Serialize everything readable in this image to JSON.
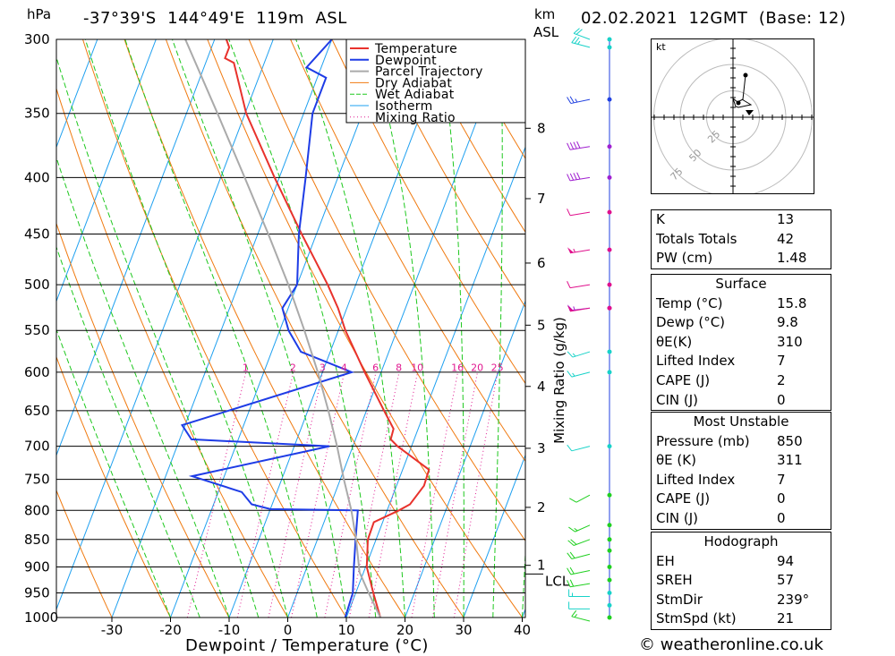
{
  "header": {
    "location": "-37°39'S  144°49'E  119m  ASL",
    "datetime": "02.02.2021  12GMT  (Base: 12)",
    "pressure_unit": "hPa",
    "height_unit_km": "km",
    "height_unit_asl": "ASL"
  },
  "footer": {
    "copyright": "© weatheronline.co.uk"
  },
  "colors": {
    "temperature": "#e8322c",
    "dewpoint": "#1e3ce6",
    "parcel": "#aaaaaa",
    "dry_adiabat": "#f07a10",
    "wet_adiabat": "#1ec81e",
    "isotherm": "#1ea0f0",
    "mixing_ratio": "#e01890",
    "wind_cyan": "#18d2c8",
    "wind_blue": "#2040e0",
    "wind_purple": "#a020d0",
    "wind_magenta": "#e0108c",
    "wind_green": "#20d020"
  },
  "chart_data": {
    "type": "line",
    "title": "",
    "xlabel": "Dewpoint / Temperature (°C)",
    "ylabel": "hPa",
    "y2label": "Mixing Ratio (g/kg)",
    "x_ticks": [
      "-30",
      "-20",
      "-10",
      "0",
      "10",
      "20",
      "30",
      "40"
    ],
    "pressure_levels": [
      300,
      350,
      400,
      450,
      500,
      550,
      600,
      650,
      700,
      750,
      800,
      850,
      900,
      950,
      1000
    ],
    "height_km": [
      {
        "label": "8",
        "p": 361
      },
      {
        "label": "7",
        "p": 418
      },
      {
        "label": "6",
        "p": 478
      },
      {
        "label": "5",
        "p": 544
      },
      {
        "label": "4",
        "p": 618
      },
      {
        "label": "3",
        "p": 703
      },
      {
        "label": "2",
        "p": 795
      },
      {
        "label": "1",
        "p": 897
      }
    ],
    "lcl_label": "LCL",
    "lcl_pressure": 910,
    "mixing_ratio_labels": [
      "1",
      "2",
      "3",
      "4",
      "6",
      "8",
      "10",
      "16",
      "20",
      "25"
    ],
    "legend": [
      "Temperature",
      "Dewpoint",
      "Parcel Trajectory",
      "Dry Adiabat",
      "Wet Adiabat",
      "Isotherm",
      "Mixing Ratio"
    ],
    "series": [
      {
        "name": "Temperature",
        "points": [
          [
            1000,
            15.8
          ],
          [
            950,
            13
          ],
          [
            900,
            10.2
          ],
          [
            850,
            8.6
          ],
          [
            820,
            8.5
          ],
          [
            800,
            12
          ],
          [
            790,
            13.5
          ],
          [
            760,
            14.7
          ],
          [
            735,
            14.5
          ],
          [
            700,
            7.6
          ],
          [
            690,
            6
          ],
          [
            675,
            5.8
          ],
          [
            650,
            3
          ],
          [
            600,
            -2.8
          ],
          [
            550,
            -8.8
          ],
          [
            525,
            -11.5
          ],
          [
            500,
            -14.8
          ],
          [
            450,
            -22.5
          ],
          [
            400,
            -30.8
          ],
          [
            350,
            -39.8
          ],
          [
            315,
            -45.2
          ],
          [
            312,
            -47
          ],
          [
            305,
            -47
          ],
          [
            300,
            -48
          ]
        ]
      },
      {
        "name": "Dewpoint",
        "points": [
          [
            1000,
            9.8
          ],
          [
            950,
            9.5
          ],
          [
            900,
            8
          ],
          [
            850,
            6.5
          ],
          [
            800,
            5
          ],
          [
            798,
            -10
          ],
          [
            790,
            -13.5
          ],
          [
            770,
            -16
          ],
          [
            745,
            -25.5
          ],
          [
            700,
            -4
          ],
          [
            690,
            -28
          ],
          [
            670,
            -30.5
          ],
          [
            600,
            -5
          ],
          [
            575,
            -15
          ],
          [
            550,
            -18.5
          ],
          [
            525,
            -21
          ],
          [
            500,
            -20
          ],
          [
            450,
            -23
          ],
          [
            400,
            -25.5
          ],
          [
            350,
            -28.5
          ],
          [
            325,
            -28.5
          ],
          [
            318,
            -32.5
          ],
          [
            300,
            -30
          ]
        ]
      },
      {
        "name": "Parcel Trajectory",
        "points": [
          [
            1000,
            15.8
          ],
          [
            950,
            12.2
          ],
          [
            910,
            9.3
          ],
          [
            850,
            6.6
          ],
          [
            800,
            3.9
          ],
          [
            750,
            0.6
          ],
          [
            700,
            -2.7
          ],
          [
            650,
            -6.5
          ],
          [
            600,
            -10.8
          ],
          [
            550,
            -15.8
          ],
          [
            500,
            -21.5
          ],
          [
            450,
            -28.2
          ],
          [
            400,
            -35.9
          ],
          [
            350,
            -44.7
          ],
          [
            300,
            -55
          ]
        ]
      }
    ],
    "winds": [
      {
        "p": 1000,
        "dir": 300,
        "spd": 15,
        "color": "wind_green"
      },
      {
        "p": 975,
        "dir": 270,
        "spd": 10,
        "color": "wind_cyan"
      },
      {
        "p": 950,
        "dir": 270,
        "spd": 15,
        "color": "wind_cyan"
      },
      {
        "p": 925,
        "dir": 250,
        "spd": 20,
        "color": "wind_green"
      },
      {
        "p": 900,
        "dir": 245,
        "spd": 20,
        "color": "wind_green"
      },
      {
        "p": 870,
        "dir": 240,
        "spd": 20,
        "color": "wind_green"
      },
      {
        "p": 850,
        "dir": 230,
        "spd": 20,
        "color": "wind_green"
      },
      {
        "p": 825,
        "dir": 225,
        "spd": 15,
        "color": "wind_green"
      },
      {
        "p": 775,
        "dir": 220,
        "spd": 10,
        "color": "wind_green"
      },
      {
        "p": 700,
        "dir": 240,
        "spd": 10,
        "color": "wind_cyan"
      },
      {
        "p": 600,
        "dir": 240,
        "spd": 15,
        "color": "wind_cyan"
      },
      {
        "p": 575,
        "dir": 235,
        "spd": 15,
        "color": "wind_cyan"
      },
      {
        "p": 525,
        "dir": 255,
        "spd": 55,
        "color": "wind_purple"
      },
      {
        "p": 525,
        "dir": 250,
        "spd": 50,
        "color": "wind_magenta"
      },
      {
        "p": 500,
        "dir": 250,
        "spd": 10,
        "color": "wind_magenta"
      },
      {
        "p": 465,
        "dir": 250,
        "spd": 55,
        "color": "wind_magenta"
      },
      {
        "p": 430,
        "dir": 250,
        "spd": 10,
        "color": "wind_magenta"
      },
      {
        "p": 400,
        "dir": 250,
        "spd": 40,
        "color": "wind_purple"
      },
      {
        "p": 375,
        "dir": 250,
        "spd": 40,
        "color": "wind_purple"
      },
      {
        "p": 340,
        "dir": 245,
        "spd": 25,
        "color": "wind_blue"
      },
      {
        "p": 305,
        "dir": 300,
        "spd": 25,
        "color": "wind_cyan"
      },
      {
        "p": 300,
        "dir": 310,
        "spd": 20,
        "color": "wind_cyan"
      }
    ]
  },
  "hodograph": {
    "unit": "kt",
    "ring_labels": [
      "25",
      "50",
      "75"
    ]
  },
  "indices": {
    "rows": [
      {
        "label": "K",
        "value": "13"
      },
      {
        "label": "Totals Totals",
        "value": "42"
      },
      {
        "label": "PW (cm)",
        "value": "1.48"
      }
    ]
  },
  "surface": {
    "title": "Surface",
    "rows": [
      {
        "label": "Temp (°C)",
        "value": "15.8"
      },
      {
        "label": "Dewp (°C)",
        "value": "9.8"
      },
      {
        "label": "θE(K)",
        "value": "310"
      },
      {
        "label": "Lifted Index",
        "value": "7"
      },
      {
        "label": "CAPE (J)",
        "value": "2"
      },
      {
        "label": "CIN (J)",
        "value": "0"
      }
    ]
  },
  "most_unstable": {
    "title": "Most Unstable",
    "rows": [
      {
        "label": "Pressure (mb)",
        "value": "850"
      },
      {
        "label": "θE (K)",
        "value": "311"
      },
      {
        "label": "Lifted Index",
        "value": "7"
      },
      {
        "label": "CAPE (J)",
        "value": "0"
      },
      {
        "label": "CIN (J)",
        "value": "0"
      }
    ]
  },
  "hodograph_table": {
    "title": "Hodograph",
    "rows": [
      {
        "label": "EH",
        "value": "94"
      },
      {
        "label": "SREH",
        "value": "57"
      },
      {
        "label": "StmDir",
        "value": "239°"
      },
      {
        "label": "StmSpd (kt)",
        "value": "21"
      }
    ]
  }
}
